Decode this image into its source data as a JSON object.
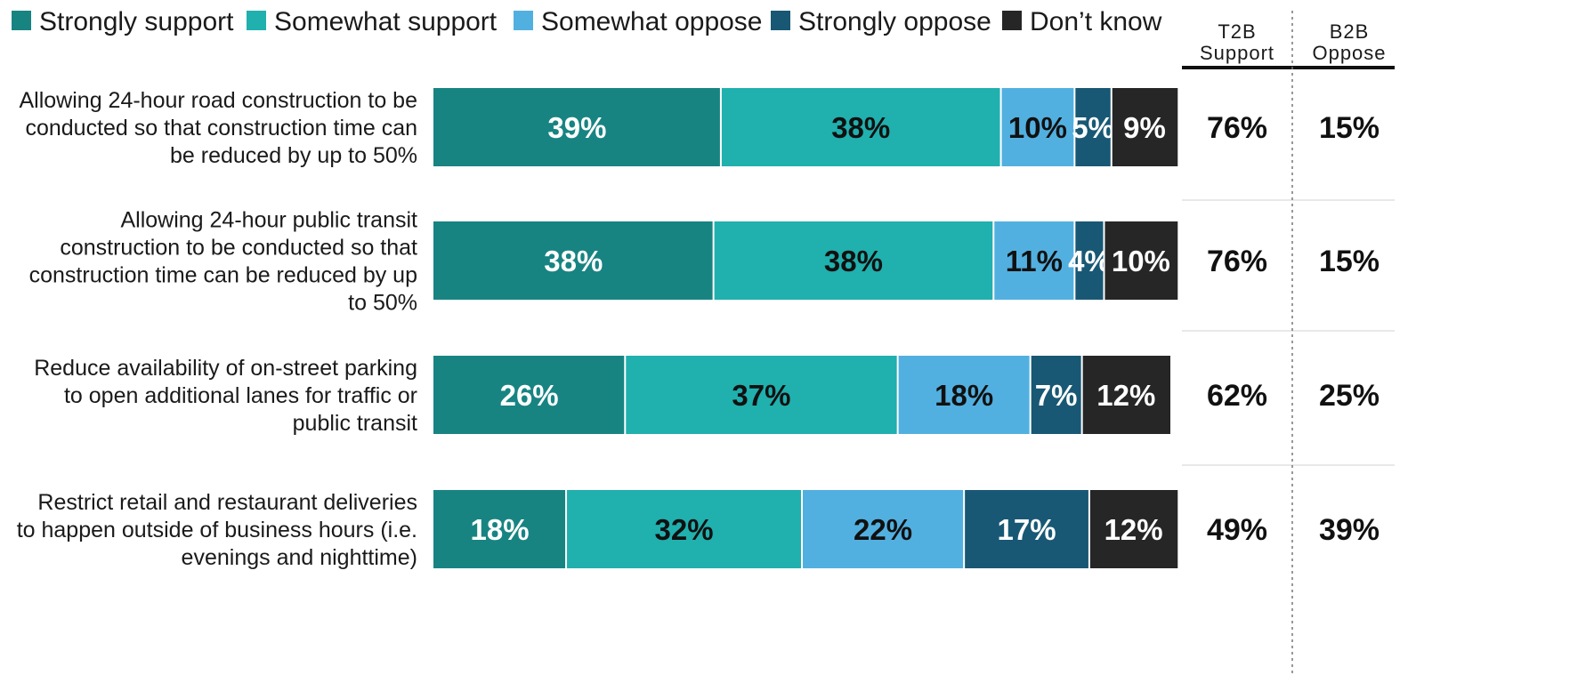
{
  "chart_data": {
    "type": "bar",
    "orientation": "horizontal",
    "stacked": true,
    "legend": {
      "placement": "top",
      "items": [
        {
          "name": "Strongly support",
          "color": "#178482"
        },
        {
          "name": "Somewhat support",
          "color": "#20b0ae"
        },
        {
          "name": "Somewhat oppose",
          "color": "#52b0e0"
        },
        {
          "name": "Strongly oppose",
          "color": "#185874"
        },
        {
          "name": "Don’t know",
          "color": "#262626"
        }
      ]
    },
    "categories": [
      [
        "Allowing 24-hour road construction to be",
        "conducted so that construction time can",
        "be reduced by up to 50%"
      ],
      [
        "Allowing 24-hour public transit",
        "construction to be conducted so that",
        "construction time can be reduced by up",
        "to 50%"
      ],
      [
        "Reduce availability of on-street parking",
        "to open additional lanes for traffic or",
        "public transit"
      ],
      [
        "Restrict retail and restaurant deliveries",
        "to happen outside of business hours (i.e.",
        "evenings and nighttime)"
      ]
    ],
    "series": [
      {
        "name": "Strongly support",
        "values": [
          39,
          38,
          26,
          18
        ],
        "labels": [
          "39%",
          "38%",
          "26%",
          "18%"
        ]
      },
      {
        "name": "Somewhat support",
        "values": [
          38,
          38,
          37,
          32
        ],
        "labels": [
          "38%",
          "38%",
          "37%",
          "32%"
        ]
      },
      {
        "name": "Somewhat oppose",
        "values": [
          10,
          11,
          18,
          22
        ],
        "labels": [
          "10%",
          "11%",
          "18%",
          "22%"
        ]
      },
      {
        "name": "Strongly oppose",
        "values": [
          5,
          4,
          7,
          17
        ],
        "labels": [
          "5%",
          "4%",
          "7%",
          "17%"
        ]
      },
      {
        "name": "Don’t know",
        "values": [
          9,
          10,
          12,
          12
        ],
        "labels": [
          "9%",
          "10%",
          "12%",
          "12%"
        ]
      }
    ],
    "summary_columns": [
      {
        "header": [
          "T2B",
          "Support"
        ],
        "values": [
          "76%",
          "76%",
          "62%",
          "49%"
        ]
      },
      {
        "header": [
          "B2B",
          "Oppose"
        ],
        "values": [
          "15%",
          "15%",
          "25%",
          "39%"
        ]
      }
    ],
    "xlim": [
      0,
      100
    ],
    "grid": false
  }
}
